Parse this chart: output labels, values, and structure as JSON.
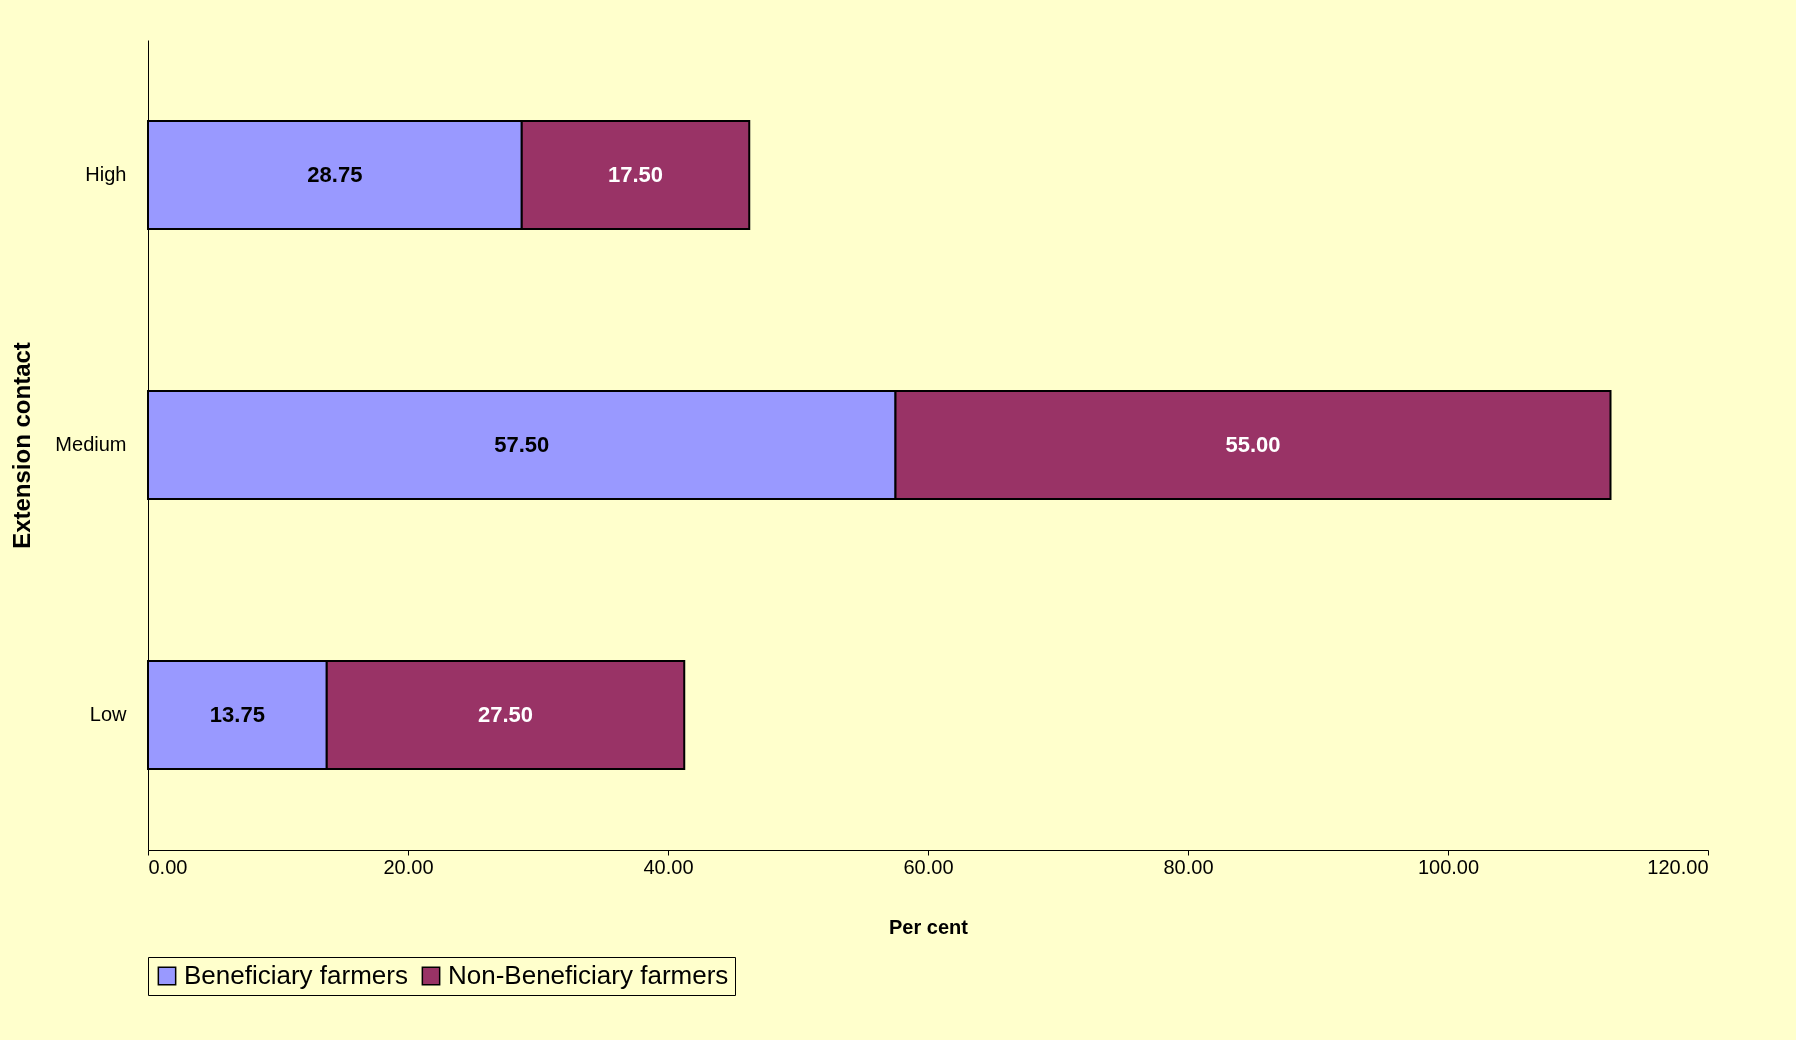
{
  "chart_data": {
    "type": "bar",
    "orientation": "horizontal",
    "stacked": true,
    "xlabel": "Per cent",
    "ylabel": "Extension contact",
    "categories": [
      "High",
      "Medium",
      "Low"
    ],
    "series": [
      {
        "name": "Beneficiary farmers",
        "color": "#9999ff",
        "values": [
          28.75,
          57.5,
          13.75
        ],
        "value_labels": [
          "28.75",
          "57.50",
          "13.75"
        ]
      },
      {
        "name": "Non-Beneficiary farmers",
        "color": "#993366",
        "values": [
          17.5,
          55,
          27.5
        ],
        "value_labels": [
          "17.50",
          "55.00",
          "27.50"
        ]
      }
    ],
    "xlim": [
      0,
      120
    ],
    "xticks": [
      {
        "value": 0,
        "label": "0.00"
      },
      {
        "value": 20,
        "label": "20.00"
      },
      {
        "value": 40,
        "label": "40.00"
      },
      {
        "value": 60,
        "label": "60.00"
      },
      {
        "value": 80,
        "label": "80.00"
      },
      {
        "value": 100,
        "label": "100.00"
      },
      {
        "value": 120,
        "label": "120.00"
      }
    ],
    "legend": "bottom",
    "grid": false
  }
}
